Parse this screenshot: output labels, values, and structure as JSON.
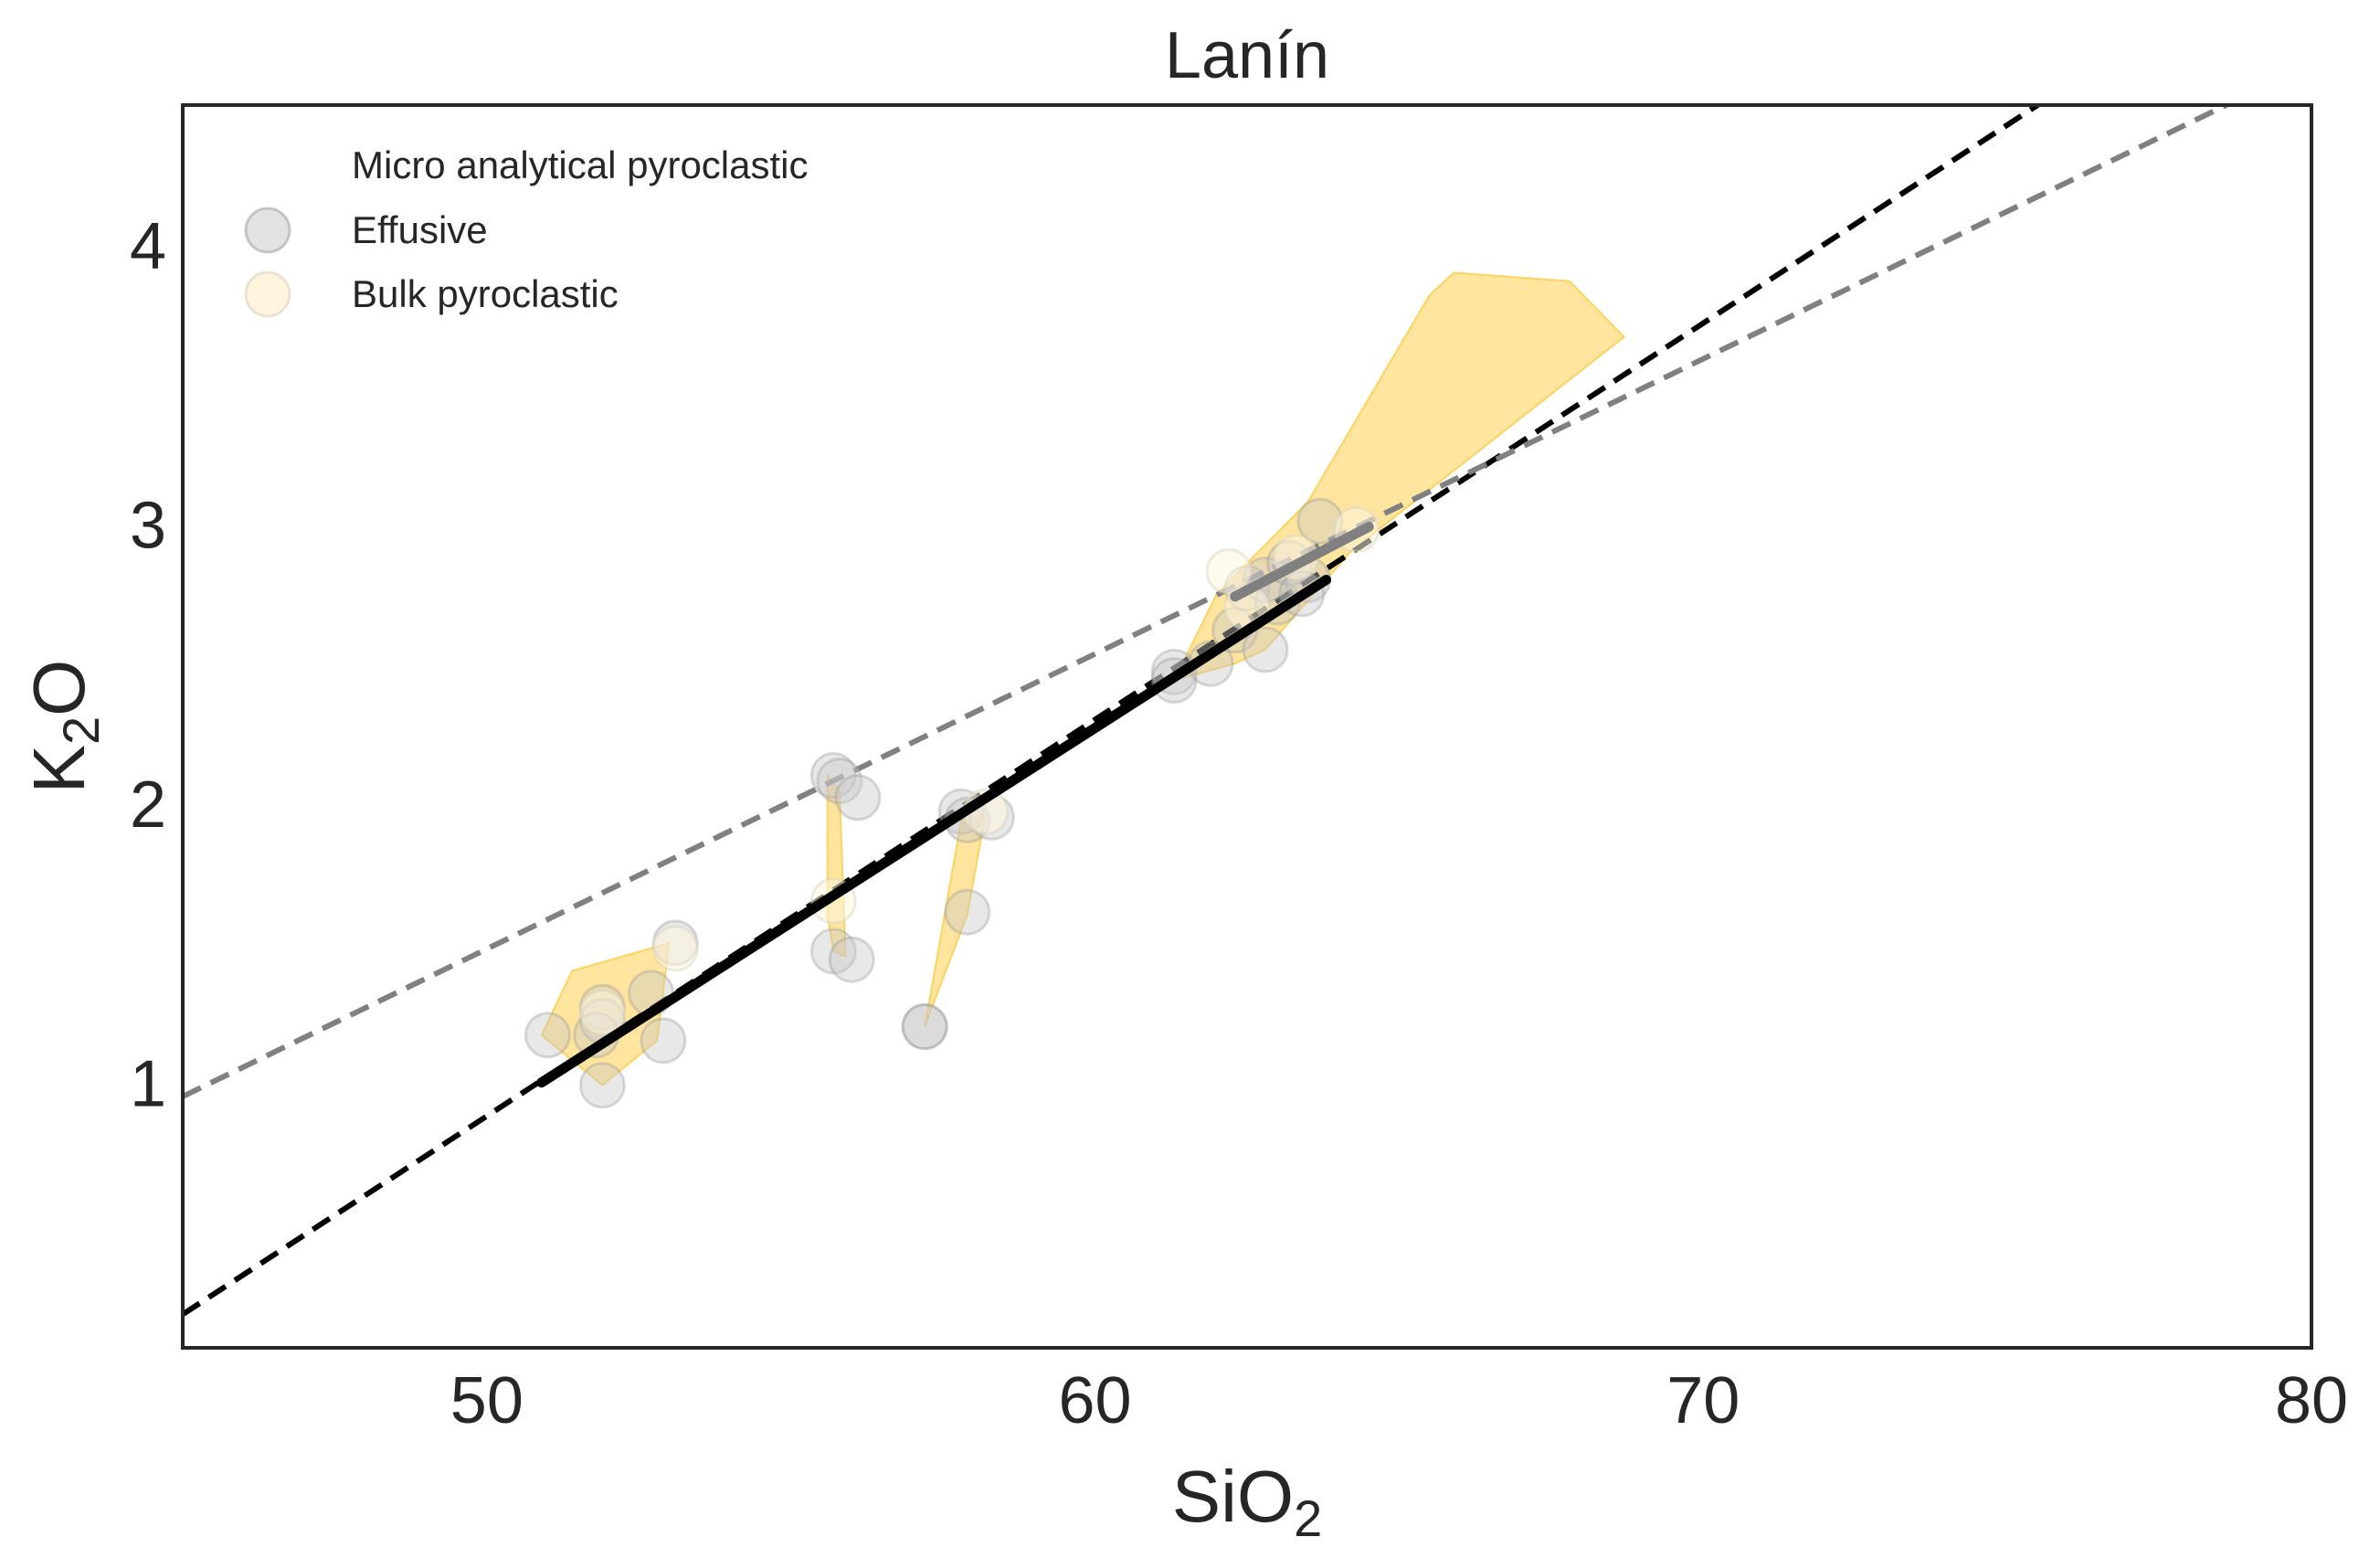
{
  "chart_data": {
    "type": "scatter",
    "title": "Lanín",
    "xlabel": {
      "base": "SiO",
      "sub": "2"
    },
    "ylabel": {
      "base": "K",
      "sub": "2",
      "tail": "O"
    },
    "xlim": [
      45,
      80
    ],
    "ylim": [
      0.05,
      4.5
    ],
    "xticks": [
      50,
      60,
      70,
      80
    ],
    "yticks": [
      1,
      2,
      3,
      4
    ],
    "grid": false,
    "legend": {
      "placement": "top-left",
      "entries": [
        {
          "label": "Micro analytical pyroclastic",
          "marker": "none"
        },
        {
          "label": "Effusive",
          "marker": "circle",
          "color": "#cccccc"
        },
        {
          "label": "Bulk pyroclastic",
          "marker": "circle",
          "color": "#fff3d6"
        }
      ]
    },
    "colors": {
      "effusive_fill": "#c7c7c7",
      "effusive_stroke": "#999999",
      "bulk_fill": "#fff6e0",
      "bulk_stroke": "#d9d2c0",
      "polygon_fill": "#ffc933",
      "polygon_stroke": "#f5b800",
      "fit_black": "#000000",
      "fit_grey": "#808080"
    },
    "series": [
      {
        "name": "Effusive",
        "kind": "scatter",
        "points": [
          [
            51.0,
            1.17
          ],
          [
            51.9,
            1.27
          ],
          [
            51.9,
            1.22
          ],
          [
            51.8,
            1.17
          ],
          [
            52.7,
            1.32
          ],
          [
            52.9,
            1.15
          ],
          [
            53.1,
            1.5
          ],
          [
            51.9,
            0.99
          ],
          [
            55.7,
            2.1
          ],
          [
            55.8,
            2.08
          ],
          [
            56.1,
            2.02
          ],
          [
            55.7,
            1.47
          ],
          [
            56.0,
            1.44
          ],
          [
            57.2,
            1.2
          ],
          [
            57.2,
            1.2
          ],
          [
            57.8,
            1.97
          ],
          [
            57.9,
            1.94
          ],
          [
            58.3,
            1.95
          ],
          [
            57.9,
            1.61
          ],
          [
            61.3,
            2.47
          ],
          [
            61.3,
            2.44
          ],
          [
            61.9,
            2.5
          ],
          [
            62.3,
            2.62
          ],
          [
            62.8,
            2.55
          ],
          [
            62.5,
            2.77
          ],
          [
            62.8,
            2.8
          ],
          [
            63.0,
            2.72
          ],
          [
            63.2,
            2.86
          ],
          [
            63.5,
            2.8
          ],
          [
            63.4,
            2.75
          ],
          [
            63.7,
            3.01
          ]
        ]
      },
      {
        "name": "Bulk pyroclastic",
        "kind": "scatter",
        "points": [
          [
            51.9,
            1.25
          ],
          [
            53.1,
            1.48
          ],
          [
            55.7,
            1.65
          ],
          [
            58.2,
            1.97
          ],
          [
            62.2,
            2.83
          ],
          [
            63.3,
            2.88
          ],
          [
            64.3,
            2.98
          ],
          [
            62.5,
            2.7
          ]
        ]
      },
      {
        "name": "",
        "kind": "polygons",
        "polygons": [
          [
            [
              50.9,
              1.17
            ],
            [
              51.4,
              1.4
            ],
            [
              53.0,
              1.5
            ],
            [
              52.8,
              1.15
            ],
            [
              51.9,
              0.99
            ]
          ],
          [
            [
              55.6,
              2.1
            ],
            [
              55.8,
              2.05
            ],
            [
              55.9,
              1.45
            ],
            [
              55.7,
              1.47
            ],
            [
              55.6,
              1.6
            ]
          ],
          [
            [
              57.2,
              1.2
            ],
            [
              57.8,
              1.94
            ],
            [
              58.2,
              1.96
            ],
            [
              57.9,
              1.6
            ]
          ],
          [
            [
              61.3,
              2.44
            ],
            [
              62.0,
              2.75
            ],
            [
              63.5,
              3.08
            ],
            [
              65.5,
              3.82
            ],
            [
              65.9,
              3.9
            ],
            [
              67.8,
              3.87
            ],
            [
              68.7,
              3.67
            ],
            [
              64.2,
              2.9
            ],
            [
              62.8,
              2.55
            ],
            [
              62.3,
              2.5
            ]
          ]
        ]
      },
      {
        "name": "",
        "kind": "line",
        "style": "solid",
        "color": "#000000",
        "points": [
          [
            50.9,
            1.0
          ],
          [
            63.8,
            2.8
          ]
        ]
      },
      {
        "name": "",
        "kind": "line",
        "style": "solid",
        "color": "#808080",
        "points": [
          [
            62.3,
            2.74
          ],
          [
            64.5,
            2.99
          ]
        ]
      },
      {
        "name": "",
        "kind": "line",
        "style": "dashed",
        "color": "#000000",
        "points": [
          [
            45.0,
            0.17
          ],
          [
            75.5,
            4.5
          ]
        ]
      },
      {
        "name": "",
        "kind": "line",
        "style": "dashed",
        "color": "#808080",
        "points": [
          [
            45.0,
            0.95
          ],
          [
            78.6,
            4.5
          ]
        ]
      }
    ]
  }
}
